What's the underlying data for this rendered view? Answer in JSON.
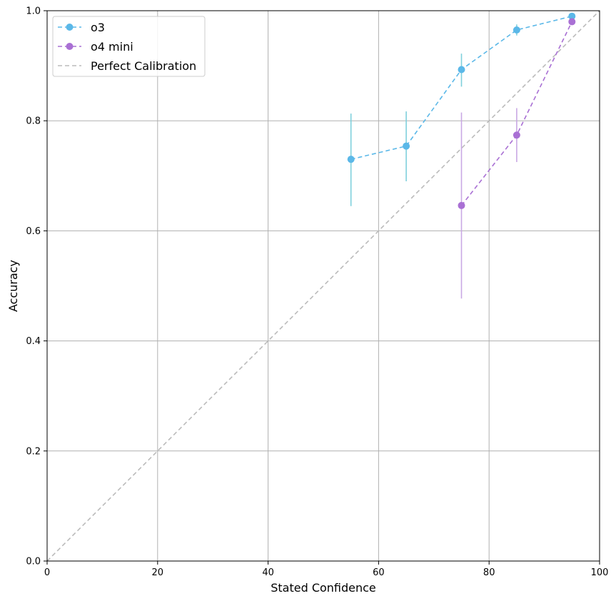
{
  "chart_data": {
    "type": "line",
    "xlabel": "Stated Confidence",
    "ylabel": "Accuracy",
    "xlim": [
      0,
      100
    ],
    "ylim": [
      0,
      1
    ],
    "xticks": [
      "0",
      "20",
      "40",
      "60",
      "80",
      "100"
    ],
    "yticks": [
      "0.0",
      "0.2",
      "0.4",
      "0.6",
      "0.8",
      "1.0"
    ],
    "grid": true,
    "legend_position": "top-left",
    "series": [
      {
        "name": "o3",
        "color": "#5BB8E8",
        "errcolor": "#7fd0dc",
        "line_style": "dashed",
        "marker": "circle",
        "x": [
          55,
          65,
          75,
          85,
          95
        ],
        "y": [
          0.73,
          0.754,
          0.893,
          0.965,
          0.99
        ],
        "err_low": [
          0.645,
          0.69,
          0.862,
          0.955,
          0.985
        ],
        "err_high": [
          0.813,
          0.817,
          0.922,
          0.975,
          0.995
        ]
      },
      {
        "name": "o4 mini",
        "color": "#A970D4",
        "errcolor": "#c9a8e4",
        "line_style": "dashed",
        "marker": "circle",
        "x": [
          75,
          85,
          95
        ],
        "y": [
          0.646,
          0.774,
          0.98
        ],
        "err_low": [
          0.477,
          0.725,
          0.975
        ],
        "err_high": [
          0.815,
          0.823,
          0.985
        ]
      }
    ],
    "reference_line": {
      "name": "Perfect Calibration",
      "color": "#bbbbbb",
      "line_style": "dashed",
      "x": [
        0,
        100
      ],
      "y": [
        0,
        1
      ]
    }
  }
}
